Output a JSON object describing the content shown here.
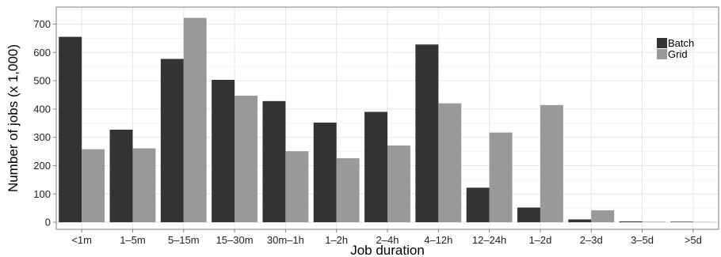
{
  "chart_data": {
    "type": "bar",
    "title": "",
    "xlabel": "Job duration",
    "ylabel": "Number of jobs (x 1,000)",
    "ylim": [
      -25,
      760
    ],
    "yticks": [
      0,
      100,
      200,
      300,
      400,
      500,
      600,
      700
    ],
    "grid": true,
    "legend_position": "top-right",
    "categories": [
      "<1m",
      "1–5m",
      "5–15m",
      "15–30m",
      "30m–1h",
      "1–2h",
      "2–4h",
      "4–12h",
      "12–24h",
      "1–2d",
      "2–3d",
      "3–5d",
      ">5d"
    ],
    "series": [
      {
        "name": "Batch",
        "color": "#333333",
        "values": [
          655,
          327,
          577,
          503,
          428,
          352,
          390,
          628,
          122,
          52,
          10,
          3,
          2
        ]
      },
      {
        "name": "Grid",
        "color": "#999999",
        "values": [
          258,
          261,
          722,
          447,
          251,
          226,
          271,
          420,
          317,
          414,
          42,
          2,
          1
        ]
      }
    ]
  }
}
